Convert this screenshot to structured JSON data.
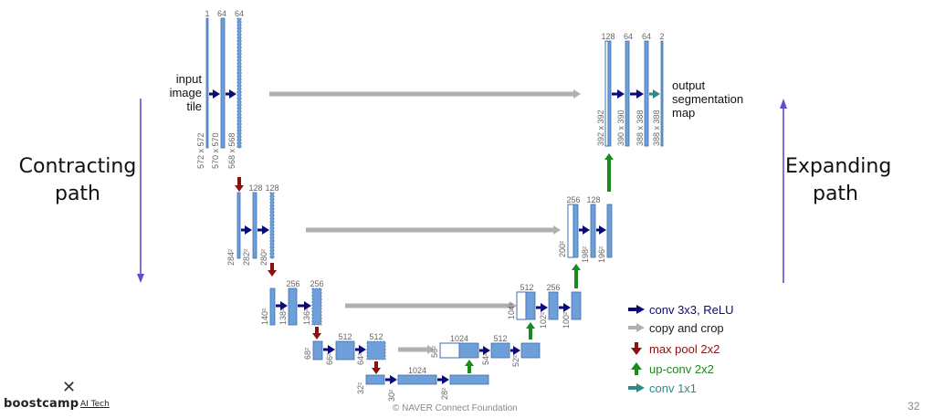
{
  "side_labels": {
    "left": {
      "line1": "Contracting",
      "line2": "path"
    },
    "right": {
      "line1": "Expanding",
      "line2": "path"
    }
  },
  "diagram": {
    "input_label": [
      "input",
      "image",
      "tile"
    ],
    "output_label": [
      "output",
      "segmentation",
      "map"
    ],
    "level1_channels": [
      "1",
      "64",
      "64"
    ],
    "level1_sizes": [
      "572 x 572",
      "570 x 570",
      "568 x 568"
    ],
    "level2_channels": [
      "128",
      "128"
    ],
    "level2_sizes": [
      "284²",
      "282²",
      "280²"
    ],
    "level3_channels": [
      "256",
      "256"
    ],
    "level3_sizes": [
      "140²",
      "138²",
      "136²"
    ],
    "level4_channels": [
      "512",
      "512"
    ],
    "level4_sizes": [
      "68²",
      "66²",
      "64²"
    ],
    "bottom_channels": [
      "1024"
    ],
    "bottom_sizes": [
      "32²",
      "30²",
      "28²"
    ],
    "up4_channels": [
      "1024",
      "512"
    ],
    "up4_sizes": [
      "56²",
      "54²",
      "52²"
    ],
    "up3_channels": [
      "512",
      "256"
    ],
    "up3_sizes": [
      "104²",
      "102²",
      "100²"
    ],
    "up2_channels": [
      "256",
      "128"
    ],
    "up2_sizes": [
      "200²",
      "198²",
      "196²"
    ],
    "up1_channels": [
      "128",
      "64",
      "64",
      "2"
    ],
    "up1_sizes": [
      "392 x 392",
      "390 x 390",
      "388 x 388",
      "388 x 388"
    ]
  },
  "colors": {
    "block": "#6f9fd8",
    "block_edge": "#3d6fb0",
    "conv_arrow": "#0a0a7a",
    "copy_arrow": "#b0b0b0",
    "pool_arrow": "#8b1010",
    "upconv_arrow": "#1a8a1a",
    "conv1x1_arrow": "#2a8a8a",
    "side_arrow": "#5b4fd0"
  },
  "legend": [
    {
      "label": "conv 3x3, ReLU",
      "icon": "arrow-right",
      "color": "#0a0a7a"
    },
    {
      "label": "copy and crop",
      "icon": "arrow-right",
      "color": "#222222"
    },
    {
      "label": "max pool 2x2",
      "icon": "arrow-down",
      "color": "#8b1010"
    },
    {
      "label": "up-conv 2x2",
      "icon": "arrow-up",
      "color": "#1a8a1a"
    },
    {
      "label": "conv 1x1",
      "icon": "arrow-right",
      "color": "#2a8a8a"
    }
  ],
  "footer": {
    "logo_mark": "✕",
    "logo_text": "boostcamp",
    "logo_sub": "AI Tech",
    "copyright": "© NAVER Connect Foundation",
    "page_number": "32"
  }
}
